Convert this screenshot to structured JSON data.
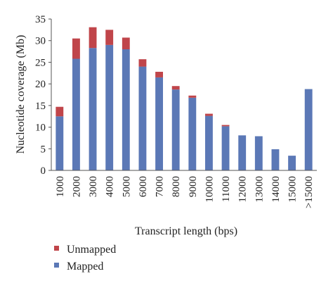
{
  "chart_data": {
    "type": "bar",
    "stacked": true,
    "categories": [
      "1000",
      "2000",
      "3000",
      "4000",
      "5000",
      "6000",
      "7000",
      "8000",
      "9000",
      "10000",
      "11000",
      "12000",
      "13000",
      "14000",
      "15000",
      ">15000"
    ],
    "series": [
      {
        "name": "Mapped",
        "color": "#5b78b6",
        "values": [
          12.5,
          25.8,
          28.3,
          29.0,
          28.0,
          24.0,
          21.5,
          18.7,
          16.8,
          12.6,
          10.2,
          8.1,
          7.9,
          4.9,
          3.4,
          18.8
        ]
      },
      {
        "name": "Unmapped",
        "color": "#c0454a",
        "values": [
          2.2,
          4.7,
          4.8,
          3.5,
          2.7,
          1.7,
          1.3,
          0.8,
          0.5,
          0.5,
          0.3,
          0.0,
          0.0,
          0.0,
          0.0,
          0.0
        ]
      }
    ],
    "xlabel": "Transcript length (bps)",
    "ylabel": "Nucleotide coverage (Mb)",
    "ylim": [
      0,
      35
    ],
    "yticks": [
      "0",
      "5",
      "10",
      "15",
      "20",
      "25",
      "30",
      "35"
    ],
    "grid": false,
    "legend": {
      "position": "bottom-left",
      "entries": [
        {
          "label": "Unmapped",
          "color": "#c0454a"
        },
        {
          "label": "Mapped",
          "color": "#5b78b6"
        }
      ]
    }
  }
}
